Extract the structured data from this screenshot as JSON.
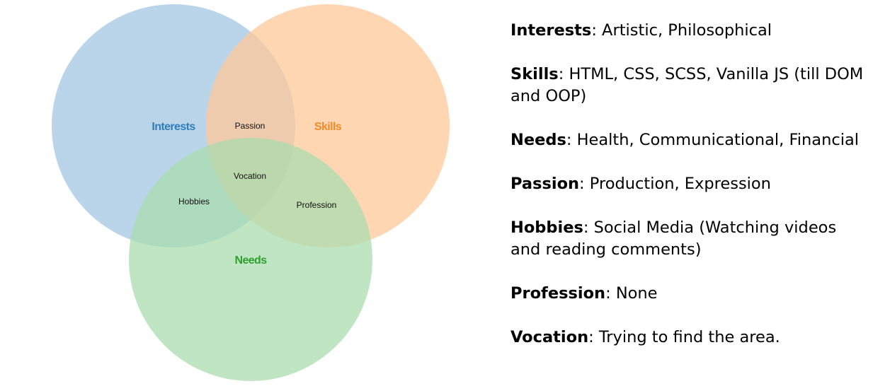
{
  "colors": {
    "interests": "#a3c6e2",
    "skills": "#ffc898",
    "needs": "#aadcad",
    "interests_text": "#2f7fbd",
    "skills_text": "#f58a24",
    "needs_text": "#2ea02c"
  },
  "diagram": {
    "sets": [
      {
        "key": "interests",
        "label": "Interests"
      },
      {
        "key": "skills",
        "label": "Skills"
      },
      {
        "key": "needs",
        "label": "Needs"
      }
    ],
    "regions": {
      "passion": "Passion",
      "vocation": "Vocation",
      "hobbies": "Hobbies",
      "profession": "Profession"
    }
  },
  "legend": [
    {
      "term": "Interests",
      "sep": ":",
      "text": " Artistic, Philosophical"
    },
    {
      "term": "Skills",
      "sep": ":",
      "text": " HTML, CSS, SCSS, Vanilla JS (till DOM and OOP)"
    },
    {
      "term": "Needs",
      "sep": ":",
      "text": " Health, Communicational, Financial"
    },
    {
      "term": "Passion",
      "sep": ":",
      "text": " Production, Expression"
    },
    {
      "term": "Hobbies",
      "sep": ":",
      "text": " Social Media (Watching videos and reading comments)"
    },
    {
      "term": "Profession",
      "sep": ":",
      "text": " None"
    },
    {
      "term": "Vocation",
      "sep": ":",
      "text": " Trying to find the area."
    }
  ]
}
